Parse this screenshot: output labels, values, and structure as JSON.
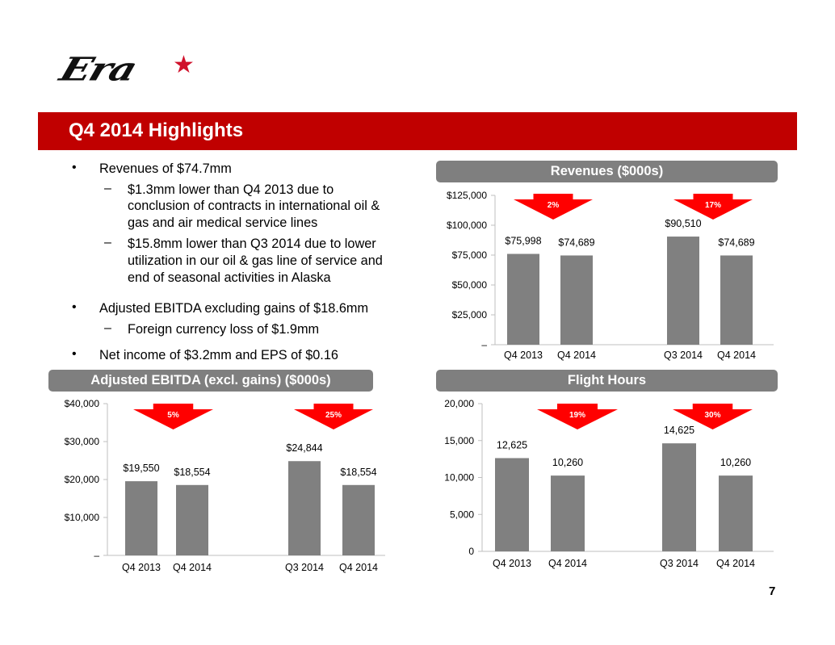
{
  "logo": {
    "text": "Era",
    "star": "★"
  },
  "title": "Q4 2014 Highlights",
  "bullets": [
    {
      "text": "Revenues of $74.7mm",
      "subs": [
        [
          "$1.3mm lower than Q4 2013 due to",
          "conclusion of contracts in international oil &",
          "gas and air medical service lines"
        ],
        [
          "$15.8mm lower than Q3 2014 due to lower",
          "utilization in our oil & gas line of service and",
          "end of seasonal activities in Alaska"
        ]
      ]
    },
    {
      "text": "Adjusted EBITDA excluding gains of $18.6mm",
      "subs": [
        [
          "Foreign currency loss of $1.9mm"
        ]
      ]
    },
    {
      "text": "Net income of $3.2mm and EPS of $0.16",
      "subs": []
    }
  ],
  "bullet_mark": "•",
  "sub_mark": "–",
  "page_number": "7",
  "colors": {
    "brand_red": "#c00000",
    "arrow_red": "#ff0000",
    "bar_gray": "#808080",
    "pill_gray": "#7f7f7f"
  },
  "chart_data": [
    {
      "type": "bar",
      "title": "Revenues ($000s)",
      "categories": [
        "Q4 2013",
        "Q4 2014",
        "Q3 2014",
        "Q4 2014"
      ],
      "values": [
        75998,
        74689,
        90510,
        74689
      ],
      "value_labels": [
        "$75,998",
        "$74,689",
        "$90,510",
        "$74,689"
      ],
      "ylim": [
        0,
        125000
      ],
      "yticks": [
        "–",
        "$25,000",
        "$50,000",
        "$75,000",
        "$100,000",
        "$125,000"
      ],
      "annotations": [
        {
          "label": "2%",
          "direction": "down",
          "from": "Q4 2013",
          "to": "Q4 2014"
        },
        {
          "label": "17%",
          "direction": "down",
          "from": "Q3 2014",
          "to": "Q4 2014"
        }
      ]
    },
    {
      "type": "bar",
      "title": "Adjusted EBITDA (excl. gains) ($000s)",
      "categories": [
        "Q4 2013",
        "Q4 2014",
        "Q3 2014",
        "Q4 2014"
      ],
      "values": [
        19550,
        18554,
        24844,
        18554
      ],
      "value_labels": [
        "$19,550",
        "$18,554",
        "$24,844",
        "$18,554"
      ],
      "ylim": [
        0,
        40000
      ],
      "yticks": [
        "–",
        "$10,000",
        "$20,000",
        "$30,000",
        "$40,000"
      ],
      "annotations": [
        {
          "label": "5%",
          "direction": "down",
          "from": "Q4 2013",
          "to": "Q4 2014"
        },
        {
          "label": "25%",
          "direction": "down",
          "from": "Q3 2014",
          "to": "Q4 2014"
        }
      ]
    },
    {
      "type": "bar",
      "title": "Flight Hours",
      "categories": [
        "Q4 2013",
        "Q4 2014",
        "Q3 2014",
        "Q4 2014"
      ],
      "values": [
        12625,
        10260,
        14625,
        10260
      ],
      "value_labels": [
        "12,625",
        "10,260",
        "14,625",
        "10,260"
      ],
      "ylim": [
        0,
        20000
      ],
      "yticks": [
        "0",
        "5,000",
        "10,000",
        "15,000",
        "20,000"
      ],
      "annotations": [
        {
          "label": "19%",
          "direction": "down",
          "from": "Q4 2013",
          "to": "Q4 2014"
        },
        {
          "label": "30%",
          "direction": "down",
          "from": "Q3 2014",
          "to": "Q4 2014"
        }
      ]
    }
  ]
}
